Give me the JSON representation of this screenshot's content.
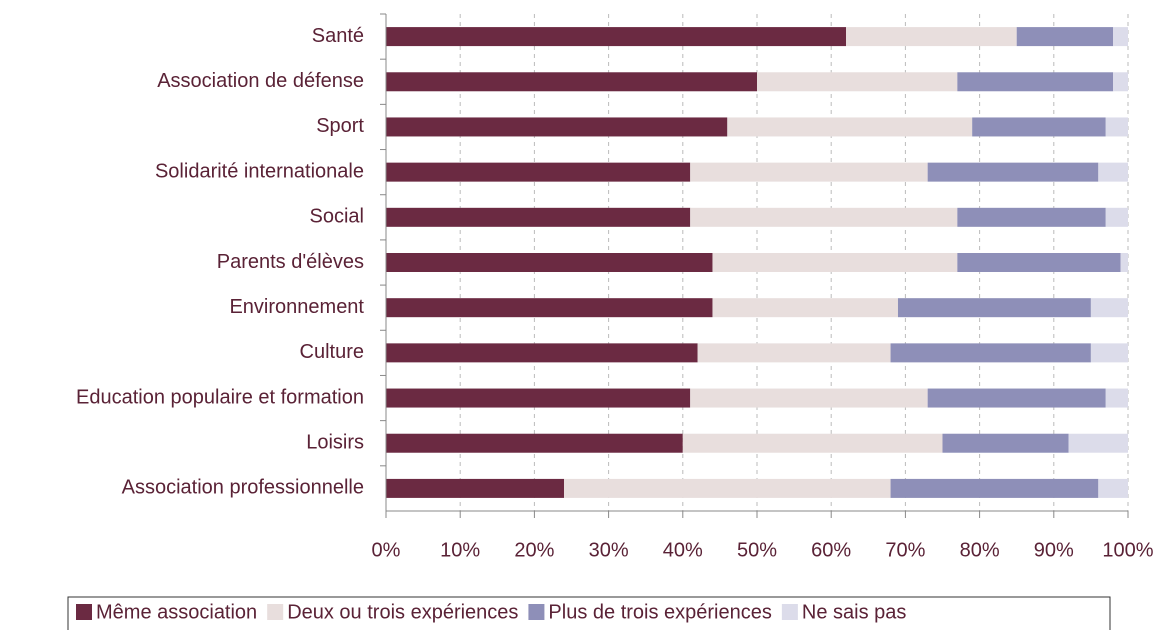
{
  "chart_data": {
    "type": "stacked_barh",
    "categories": [
      "Santé",
      "Association de défense",
      "Sport",
      "Solidarité internationale",
      "Social",
      "Parents d'élèves",
      "Environnement",
      "Culture",
      "Education populaire et formation",
      "Loisirs",
      "Association professionnelle"
    ],
    "series": [
      {
        "name": "Même association",
        "color": "#6b2a42",
        "values": [
          62,
          50,
          46,
          41,
          41,
          44,
          44,
          42,
          41,
          40,
          24
        ]
      },
      {
        "name": "Deux ou trois expériences",
        "color": "#e8dedd",
        "values": [
          23,
          27,
          33,
          32,
          36,
          33,
          25,
          26,
          32,
          35,
          44
        ]
      },
      {
        "name": "Plus de trois expériences",
        "color": "#8e8fb8",
        "values": [
          13,
          21,
          18,
          23,
          20,
          22,
          26,
          27,
          24,
          17,
          28
        ]
      },
      {
        "name": "Ne sais pas",
        "color": "#dcdcea",
        "values": [
          2,
          2,
          3,
          4,
          3,
          1,
          5,
          5,
          3,
          8,
          4
        ]
      }
    ],
    "xlim": [
      0,
      100
    ],
    "xticks": [
      {
        "value": 0,
        "label": "0%"
      },
      {
        "value": 10,
        "label": "10%"
      },
      {
        "value": 20,
        "label": "20%"
      },
      {
        "value": 30,
        "label": "30%"
      },
      {
        "value": 40,
        "label": "40%"
      },
      {
        "value": 50,
        "label": "50%"
      },
      {
        "value": 60,
        "label": "60%"
      },
      {
        "value": 70,
        "label": "70%"
      },
      {
        "value": 80,
        "label": "80%"
      },
      {
        "value": 90,
        "label": "90%"
      },
      {
        "value": 100,
        "label": "100%"
      }
    ],
    "grid": true,
    "legend": "bottom"
  }
}
